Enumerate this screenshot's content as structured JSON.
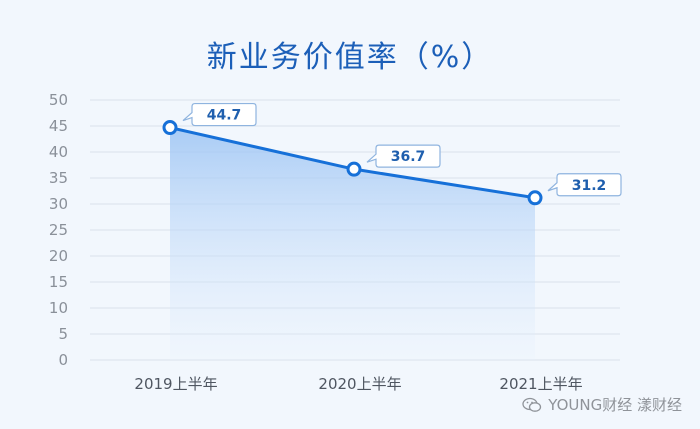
{
  "chart_data": {
    "type": "line",
    "title": "新业务价值率（%）",
    "categories": [
      "2019上半年",
      "2020上半年",
      "2021上半年"
    ],
    "series": [
      {
        "values": [
          44.7,
          36.7,
          31.2
        ]
      }
    ],
    "data_labels": [
      "44.7",
      "36.7",
      "31.2"
    ],
    "ylim": [
      0,
      50
    ],
    "yticks": [
      "0",
      "5",
      "10",
      "15",
      "20",
      "25",
      "30",
      "35",
      "40",
      "45",
      "50"
    ],
    "grid": true,
    "area_fill": true,
    "colors": {
      "line": "#1670d8",
      "fill_top": "#9cc4f4",
      "grid": "#d9e1ea",
      "title": "#1c5fb8"
    }
  },
  "watermark": {
    "icon": "wechat-icon",
    "text": "YOUNG财经 漾财经"
  }
}
